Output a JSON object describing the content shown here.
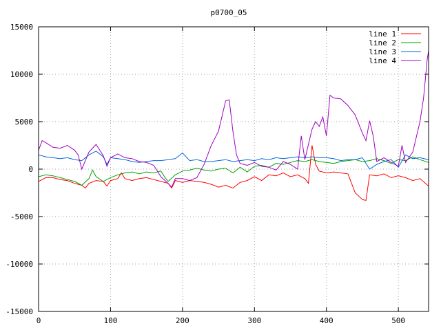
{
  "chart_data": {
    "type": "line",
    "title": "p0700_05",
    "xlabel": "",
    "ylabel": "",
    "xlim": [
      0,
      542
    ],
    "ylim": [
      -15000,
      15000
    ],
    "xticks": [
      0,
      100,
      200,
      300,
      400,
      500
    ],
    "yticks": [
      -15000,
      -10000,
      -5000,
      0,
      5000,
      10000,
      15000
    ],
    "grid": true,
    "legend_position": "top-right",
    "series": [
      {
        "name": "line 1",
        "color": "#ff0000",
        "x": [
          0,
          10,
          20,
          30,
          40,
          50,
          60,
          65,
          70,
          80,
          90,
          95,
          100,
          110,
          115,
          120,
          130,
          140,
          150,
          160,
          170,
          180,
          185,
          190,
          200,
          210,
          220,
          230,
          240,
          250,
          260,
          270,
          280,
          290,
          300,
          310,
          320,
          330,
          340,
          350,
          360,
          370,
          375,
          380,
          385,
          390,
          400,
          410,
          420,
          430,
          440,
          450,
          455,
          460,
          470,
          480,
          490,
          500,
          510,
          520,
          530,
          542
        ],
        "y": [
          -1300,
          -900,
          -900,
          -1100,
          -1200,
          -1500,
          -1700,
          -2000,
          -1500,
          -1200,
          -1300,
          -1800,
          -1200,
          -1000,
          -400,
          -1000,
          -1200,
          -1000,
          -900,
          -1100,
          -1300,
          -1500,
          -2000,
          -1200,
          -1400,
          -1200,
          -1300,
          -1400,
          -1600,
          -1900,
          -1700,
          -2000,
          -1400,
          -1200,
          -800,
          -1200,
          -600,
          -700,
          -400,
          -800,
          -600,
          -1000,
          -1500,
          2500,
          500,
          -200,
          -400,
          -300,
          -400,
          -500,
          -2500,
          -3200,
          -3300,
          -600,
          -700,
          -500,
          -900,
          -700,
          -900,
          -1200,
          -1000,
          -1800
        ]
      },
      {
        "name": "line 2",
        "color": "#00a000",
        "x": [
          0,
          10,
          20,
          30,
          40,
          50,
          60,
          70,
          75,
          80,
          90,
          100,
          110,
          120,
          130,
          140,
          150,
          160,
          170,
          175,
          180,
          190,
          200,
          210,
          220,
          230,
          240,
          250,
          260,
          270,
          280,
          290,
          300,
          310,
          320,
          330,
          340,
          350,
          360,
          370,
          380,
          390,
          400,
          410,
          420,
          430,
          440,
          450,
          460,
          470,
          480,
          490,
          500,
          510,
          520,
          530,
          542
        ],
        "y": [
          -800,
          -600,
          -700,
          -900,
          -1100,
          -1300,
          -1700,
          -1000,
          -100,
          -800,
          -1300,
          -900,
          -600,
          -400,
          -300,
          -500,
          -300,
          -400,
          -200,
          -800,
          -1300,
          -600,
          -200,
          -100,
          100,
          -100,
          -200,
          0,
          100,
          -400,
          200,
          -300,
          300,
          400,
          200,
          600,
          500,
          700,
          900,
          800,
          1000,
          800,
          700,
          600,
          800,
          900,
          1000,
          800,
          900,
          1100,
          900,
          600,
          1000,
          900,
          1300,
          1000,
          700
        ]
      },
      {
        "name": "line 3",
        "color": "#0066dd",
        "x": [
          0,
          10,
          20,
          30,
          40,
          50,
          60,
          70,
          80,
          90,
          95,
          100,
          110,
          120,
          130,
          140,
          150,
          160,
          170,
          180,
          190,
          200,
          210,
          220,
          230,
          240,
          250,
          260,
          270,
          280,
          290,
          300,
          310,
          320,
          330,
          340,
          350,
          360,
          370,
          380,
          390,
          400,
          410,
          420,
          430,
          440,
          450,
          460,
          470,
          480,
          490,
          500,
          510,
          520,
          530,
          542
        ],
        "y": [
          1500,
          1300,
          1200,
          1100,
          1200,
          1000,
          900,
          1500,
          1900,
          1300,
          500,
          1200,
          1100,
          1000,
          800,
          700,
          800,
          900,
          900,
          1000,
          1100,
          1700,
          900,
          1000,
          800,
          800,
          900,
          1000,
          800,
          900,
          1000,
          900,
          1100,
          1000,
          1200,
          1100,
          1200,
          1300,
          1200,
          1300,
          1200,
          1200,
          1100,
          900,
          1000,
          1000,
          1200,
          0,
          500,
          800,
          1000,
          200,
          1500,
          1100,
          1200,
          1000
        ]
      },
      {
        "name": "line 4",
        "color": "#a000c0",
        "x": [
          0,
          5,
          10,
          20,
          30,
          40,
          50,
          55,
          60,
          65,
          70,
          80,
          90,
          95,
          100,
          110,
          120,
          130,
          140,
          150,
          160,
          170,
          180,
          185,
          190,
          200,
          210,
          220,
          230,
          240,
          250,
          260,
          265,
          270,
          275,
          280,
          290,
          300,
          310,
          320,
          330,
          340,
          350,
          360,
          365,
          370,
          380,
          385,
          390,
          395,
          400,
          405,
          410,
          420,
          430,
          440,
          450,
          455,
          460,
          465,
          470,
          480,
          490,
          500,
          505,
          510,
          520,
          530,
          535,
          540,
          542
        ],
        "y": [
          2000,
          3000,
          2800,
          2300,
          2200,
          2500,
          2000,
          1500,
          0,
          900,
          1800,
          2600,
          1400,
          300,
          1200,
          1600,
          1200,
          1100,
          800,
          700,
          400,
          -800,
          -1500,
          -1900,
          -1000,
          -1000,
          -1200,
          -900,
          500,
          2500,
          4000,
          7200,
          7300,
          4000,
          1500,
          600,
          400,
          700,
          300,
          200,
          -100,
          800,
          500,
          0,
          3500,
          1000,
          4200,
          5000,
          4500,
          5500,
          3500,
          7800,
          7500,
          7400,
          6700,
          5700,
          3800,
          3000,
          5100,
          3500,
          800,
          1200,
          700,
          300,
          2500,
          700,
          1800,
          5000,
          7500,
          11500,
          12500
        ]
      }
    ]
  }
}
